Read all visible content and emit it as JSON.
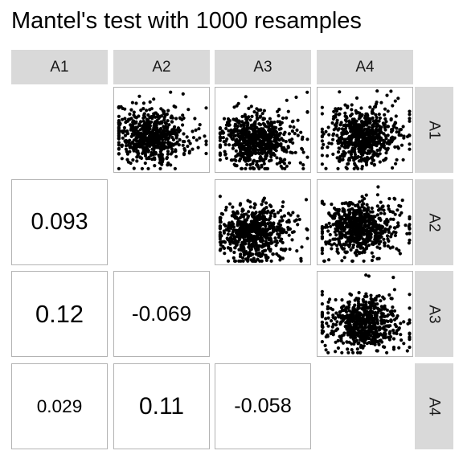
{
  "title": "Mantel's test with 1000 resamples",
  "chart_data": {
    "type": "scatter",
    "title": "Mantel's test with 1000 resamples",
    "variables": [
      "A1",
      "A2",
      "A3",
      "A4"
    ],
    "lower_correlations": [
      {
        "row": "A2",
        "col": "A1",
        "label": "0.093",
        "value": 0.093
      },
      {
        "row": "A3",
        "col": "A1",
        "label": "0.12",
        "value": 0.12
      },
      {
        "row": "A3",
        "col": "A2",
        "label": "-0.069",
        "value": -0.069
      },
      {
        "row": "A4",
        "col": "A1",
        "label": "0.029",
        "value": 0.029
      },
      {
        "row": "A4",
        "col": "A2",
        "label": "0.11",
        "value": 0.11
      },
      {
        "row": "A4",
        "col": "A3",
        "label": "-0.058",
        "value": -0.058
      }
    ],
    "upper_scatter_panels": [
      {
        "row": "A1",
        "col": "A2"
      },
      {
        "row": "A1",
        "col": "A3"
      },
      {
        "row": "A1",
        "col": "A4"
      },
      {
        "row": "A2",
        "col": "A3"
      },
      {
        "row": "A2",
        "col": "A4"
      },
      {
        "row": "A3",
        "col": "A4"
      }
    ],
    "point_color": "#000000"
  }
}
